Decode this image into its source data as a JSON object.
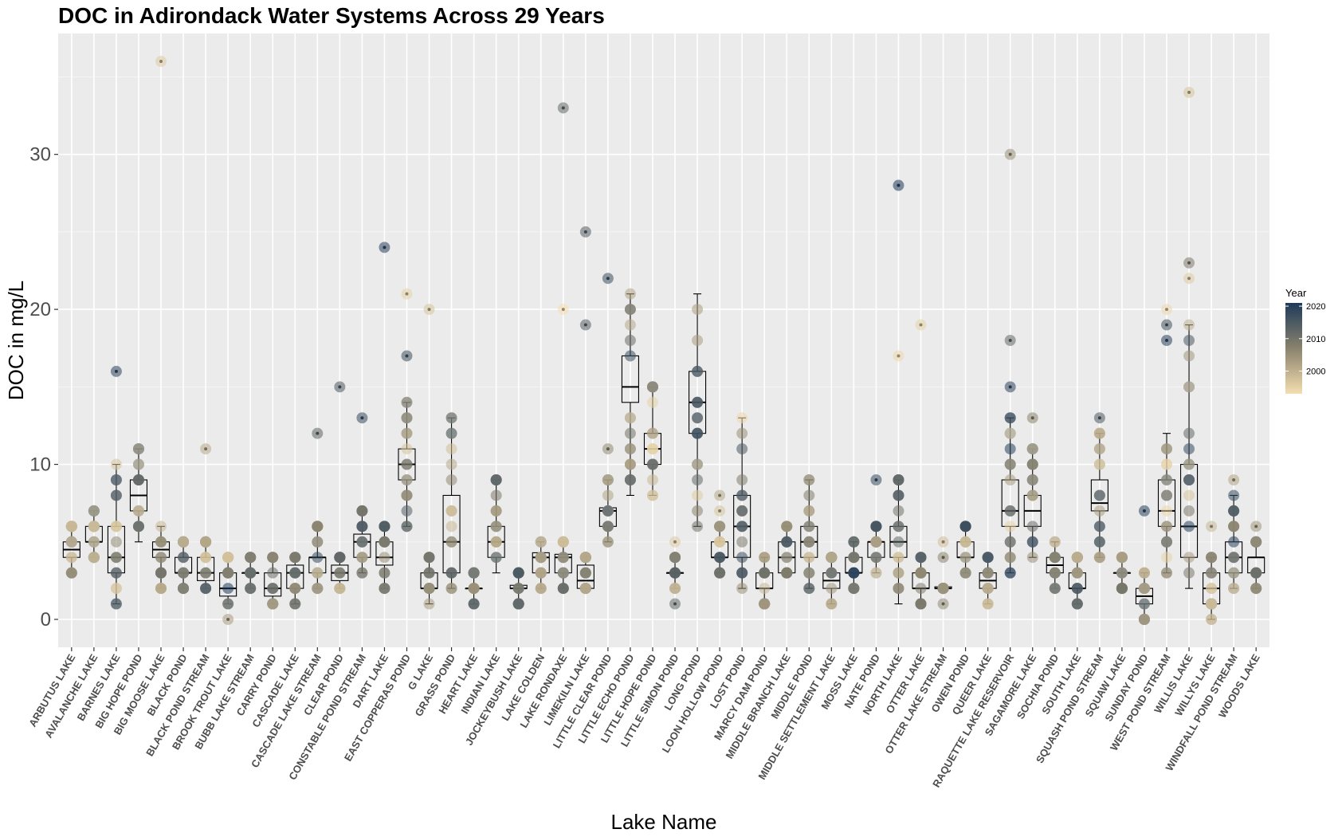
{
  "chart_data": {
    "type": "scatter",
    "subtype": "boxplot-with-jittered-points",
    "title": "DOC in Adirondack Water Systems Across 29 Years",
    "xlabel": "Lake Name",
    "ylabel": "DOC in mg/L",
    "ylim": [
      -1.8,
      37.8
    ],
    "y_ticks": [
      0,
      10,
      20,
      30
    ],
    "grid": true,
    "legend": {
      "title": "Year",
      "placement": "right",
      "ticks": [
        2000,
        2010,
        2020
      ],
      "range": [
        1993,
        2021
      ],
      "color_low": "#f5deb0",
      "color_high": "#1e3a5a"
    },
    "categories": [
      "ARBUTUS LAKE",
      "AVALANCHE LAKE",
      "BARNES LAKE",
      "BIG HOPE POND",
      "BIG MOOSE LAKE",
      "BLACK POND",
      "BLACK POND STREAM",
      "BROOK TROUT LAKE",
      "BUBB LAKE STREAM",
      "CARRY POND",
      "CASCADE LAKE",
      "CASCADE LAKE STREAM",
      "CLEAR POND",
      "CONSTABLE POND STREAM",
      "DART LAKE",
      "EAST COPPERAS POND",
      "G LAKE",
      "GRASS POND",
      "HEART LAKE",
      "INDIAN LAKE",
      "JOCKEYBUSH LAKE",
      "LAKE COLDEN",
      "LAKE RONDAXE",
      "LIMEKILN LAKE",
      "LITTLE CLEAR POND",
      "LITTLE ECHO POND",
      "LITTLE HOPE POND",
      "LITTLE SIMON POND",
      "LONG POND",
      "LOON HOLLOW POND",
      "LOST POND",
      "MARCY DAM POND",
      "MIDDLE BRANCH LAKE",
      "MIDDLE POND",
      "MIDDLE SETTLEMENT LAKE",
      "MOSS LAKE",
      "NATE POND",
      "NORTH LAKE",
      "OTTER LAKE",
      "OTTER LAKE STREAM",
      "OWEN POND",
      "QUEER LAKE",
      "RAQUETTE LAKE RESERVOIR",
      "SAGAMORE LAKE",
      "SOCHIA POND",
      "SOUTH LAKE",
      "SQUASH POND STREAM",
      "SQUAW LAKE",
      "SUNDAY POND",
      "WEST POND STREAM",
      "WILLIS LAKE",
      "WILLYS LAKE",
      "WINDFALL POND STREAM",
      "WOODS LAKE"
    ],
    "box_stats": [
      [
        3,
        4,
        4.5,
        5,
        6
      ],
      [
        4,
        5,
        5,
        6,
        7
      ],
      [
        1,
        3,
        4,
        6,
        10
      ],
      [
        5,
        7,
        8,
        9,
        11
      ],
      [
        2,
        4,
        4.5,
        5,
        6
      ],
      [
        2,
        3,
        3,
        4,
        5
      ],
      [
        2,
        2.5,
        3,
        4,
        5
      ],
      [
        1,
        1.5,
        2,
        3,
        4
      ],
      [
        2,
        3,
        3,
        3,
        4
      ],
      [
        1,
        1.5,
        2,
        3,
        4
      ],
      [
        1,
        2,
        3,
        3.5,
        4
      ],
      [
        2,
        3,
        4,
        4,
        6
      ],
      [
        2,
        2.5,
        3,
        3.5,
        4
      ],
      [
        3,
        4,
        5,
        5.5,
        7
      ],
      [
        2,
        3.5,
        4,
        5,
        6
      ],
      [
        6,
        9,
        10,
        11,
        14
      ],
      [
        1,
        2,
        2,
        3,
        4
      ],
      [
        2,
        3,
        5,
        8,
        13
      ],
      [
        1,
        2,
        2,
        2,
        3
      ],
      [
        3,
        4,
        5,
        6,
        9
      ],
      [
        1,
        2,
        2,
        2.2,
        3
      ],
      [
        2,
        3,
        4,
        4.3,
        5
      ],
      [
        2,
        3,
        4,
        4.2,
        5
      ],
      [
        2,
        2,
        2.5,
        3.5,
        4
      ],
      [
        5,
        6,
        7,
        7.2,
        9
      ],
      [
        8,
        14,
        15,
        17,
        21
      ],
      [
        8,
        10,
        11,
        12,
        15
      ],
      [
        2,
        3,
        3,
        3,
        4
      ],
      [
        6,
        12,
        14,
        16,
        21
      ],
      [
        3,
        4,
        4,
        5,
        6
      ],
      [
        2,
        4,
        6,
        8,
        13
      ],
      [
        1,
        2,
        2,
        3,
        4
      ],
      [
        3,
        3,
        4,
        5,
        6
      ],
      [
        2,
        4,
        5,
        6,
        9
      ],
      [
        1,
        2,
        2.5,
        3,
        4
      ],
      [
        2,
        3,
        3,
        4,
        5
      ],
      [
        3,
        4,
        5,
        5,
        6
      ],
      [
        1,
        4,
        5,
        6,
        9
      ],
      [
        1,
        2,
        2,
        3,
        4
      ],
      [
        1.9,
        2,
        2,
        2.1,
        2.2
      ],
      [
        3,
        4,
        4,
        5,
        6
      ],
      [
        1,
        2,
        2.5,
        3,
        4
      ],
      [
        3,
        6,
        7,
        9,
        13
      ],
      [
        4,
        6,
        7,
        8,
        11
      ],
      [
        2,
        3,
        3.5,
        4,
        5
      ],
      [
        1,
        2,
        2,
        3,
        4
      ],
      [
        4,
        7,
        7.5,
        9,
        12
      ],
      [
        2,
        3,
        3,
        3,
        4
      ],
      [
        0,
        1,
        1.5,
        2,
        3
      ],
      [
        3,
        6,
        7,
        9,
        12
      ],
      [
        2,
        4,
        6,
        10,
        19
      ],
      [
        0,
        1,
        2,
        3,
        4
      ],
      [
        2,
        3,
        4,
        5,
        8
      ],
      [
        2,
        3,
        4,
        4,
        5
      ]
    ],
    "outliers": [
      [],
      [],
      [
        16
      ],
      [],
      [
        36
      ],
      [],
      [
        11
      ],
      [
        0
      ],
      [],
      [],
      [],
      [
        12
      ],
      [
        15
      ],
      [
        13
      ],
      [
        24
      ],
      [
        21,
        17
      ],
      [
        20
      ],
      [],
      [],
      [],
      [],
      [],
      [
        33,
        20
      ],
      [
        25,
        19
      ],
      [
        22,
        11
      ],
      [],
      [],
      [
        5,
        4,
        1
      ],
      [],
      [
        8,
        7
      ],
      [],
      [],
      [],
      [],
      [],
      [],
      [
        9
      ],
      [
        28,
        17
      ],
      [
        19
      ],
      [
        5,
        4,
        1
      ],
      [],
      [],
      [
        30,
        18,
        15
      ],
      [
        13
      ],
      [],
      [],
      [
        13
      ],
      [],
      [
        7
      ],
      [
        20,
        19,
        18
      ],
      [
        34,
        23,
        22
      ],
      [
        6
      ],
      [
        9
      ],
      [
        6
      ]
    ]
  }
}
